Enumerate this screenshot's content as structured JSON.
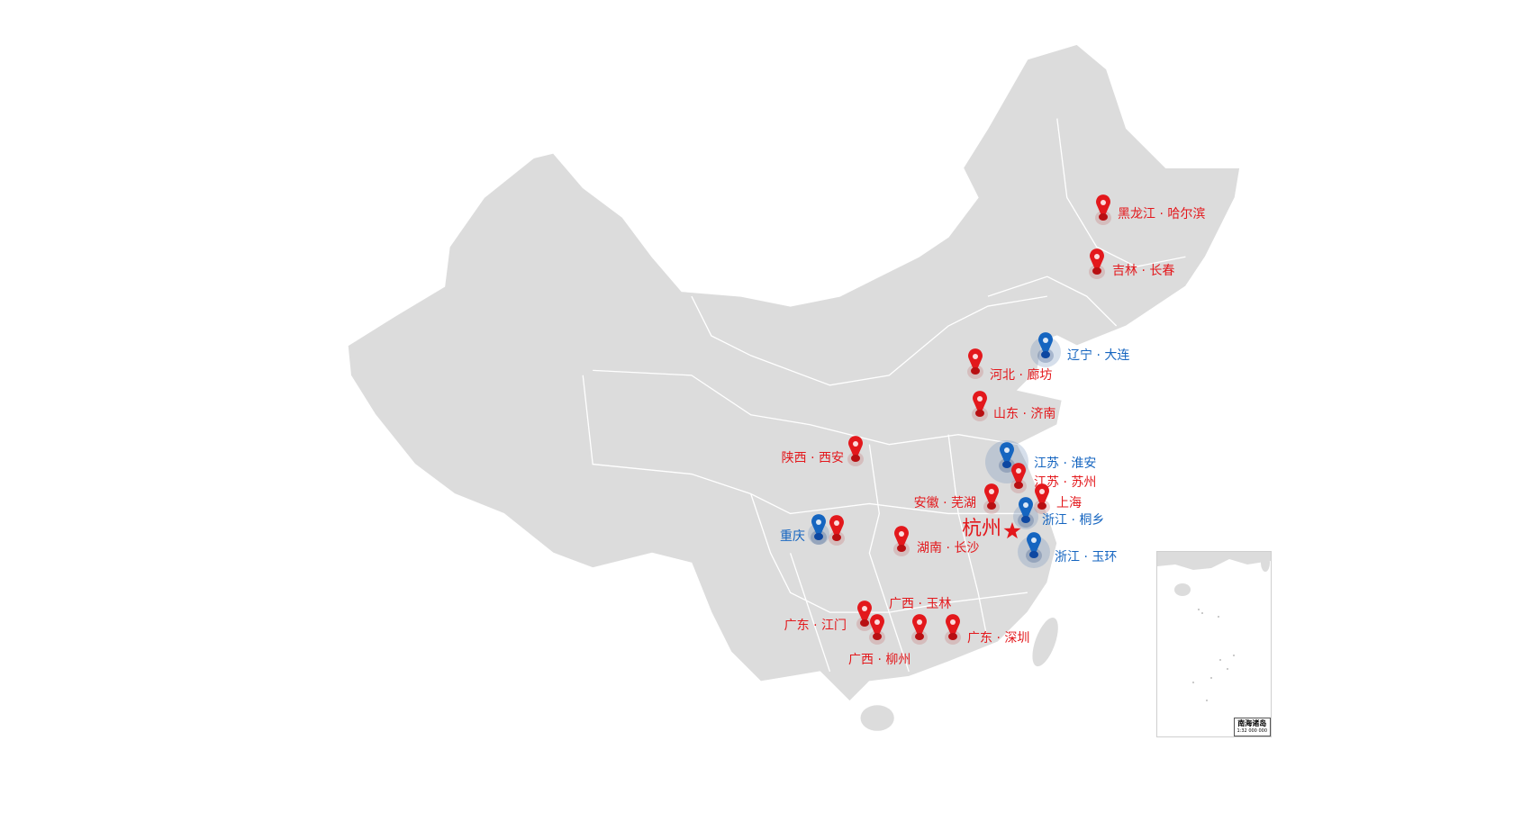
{
  "map": {
    "land_color": "#dcdcdc",
    "border_color": "#ffffff",
    "marker_colors": {
      "red": "#e3181c",
      "blue": "#1565c0"
    },
    "center": {
      "label": "杭州",
      "icon": "star-icon",
      "color": "#e3181c"
    },
    "markers": [
      {
        "label": "黑龙江 · 哈尔滨",
        "color": "red"
      },
      {
        "label": "吉林 · 长春",
        "color": "red"
      },
      {
        "label": "辽宁 · 大连",
        "color": "blue"
      },
      {
        "label": "河北 · 廊坊",
        "color": "red"
      },
      {
        "label": "山东 · 济南",
        "color": "red"
      },
      {
        "label": "陕西 · 西安",
        "color": "red"
      },
      {
        "label": "江苏 · 淮安",
        "color": "blue"
      },
      {
        "label": "江苏 · 苏州",
        "color": "red"
      },
      {
        "label": "安徽 · 芜湖",
        "color": "red"
      },
      {
        "label": "上海",
        "color": "red"
      },
      {
        "label": "浙江 · 桐乡",
        "color": "blue"
      },
      {
        "label": "浙江 · 玉环",
        "color": "blue"
      },
      {
        "label": "重庆",
        "color": "blue"
      },
      {
        "label": "",
        "color": "red"
      },
      {
        "label": "湖南 · 长沙",
        "color": "red"
      },
      {
        "label": "广东 · 江门",
        "color": "red"
      },
      {
        "label": "广西 · 柳州",
        "color": "red"
      },
      {
        "label": "广西 · 玉林",
        "color": "red"
      },
      {
        "label": "广东 · 深圳",
        "color": "red"
      }
    ],
    "inset": {
      "title": "南海诸岛",
      "scale": "1:32 000 000"
    }
  }
}
